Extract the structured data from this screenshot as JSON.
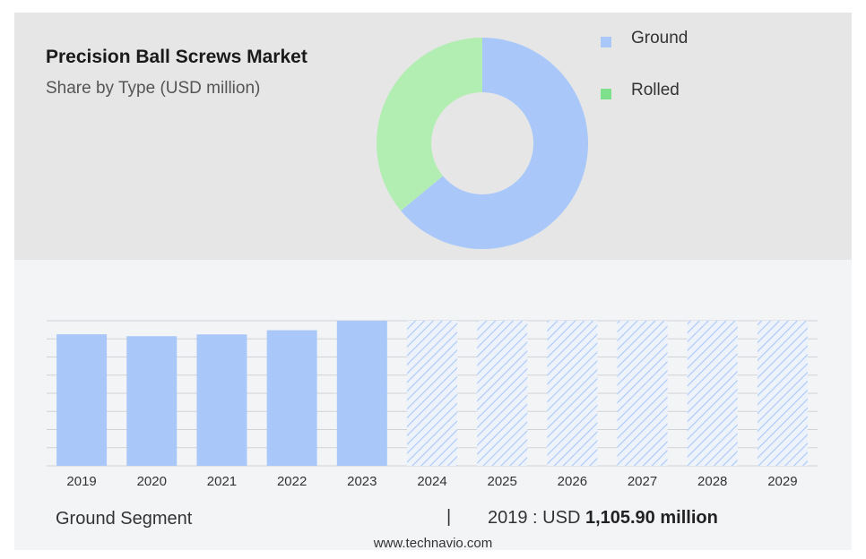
{
  "header": {
    "title": "Precision Ball Screws Market",
    "subtitle": "Share by Type (USD million)"
  },
  "colors": {
    "ground": "#a9c8f9",
    "rolled": "#b2eeb2",
    "legend_rolled_swatch": "#7ee08a",
    "forecast_hatch": "#a9c8f9"
  },
  "legend": {
    "items": [
      {
        "label": "Ground",
        "color": "#a9c8f9"
      },
      {
        "label": "Rolled",
        "color": "#7ee08a"
      }
    ]
  },
  "footer": {
    "segment_label": "Ground Segment",
    "divider": "|",
    "stat_prefix": "2019 : USD ",
    "stat_value": "1,105.90 million",
    "source": "www.technavio.com"
  },
  "chart_data": [
    {
      "type": "pie",
      "donut": true,
      "labels": [
        "Ground",
        "Rolled"
      ],
      "values": [
        64,
        36
      ],
      "title": "Share by Type (USD million)"
    },
    {
      "type": "bar",
      "categories": [
        "2019",
        "2020",
        "2021",
        "2022",
        "2023",
        "2024",
        "2025",
        "2026",
        "2027",
        "2028",
        "2029"
      ],
      "values": [
        1105.9,
        1090,
        1105,
        1140,
        1220,
        null,
        null,
        null,
        null,
        null,
        null
      ],
      "forecast": [
        false,
        false,
        false,
        false,
        false,
        true,
        true,
        true,
        true,
        true,
        true
      ],
      "ylim": [
        0,
        1220
      ],
      "grid": true,
      "series_name": "Ground Segment"
    }
  ]
}
